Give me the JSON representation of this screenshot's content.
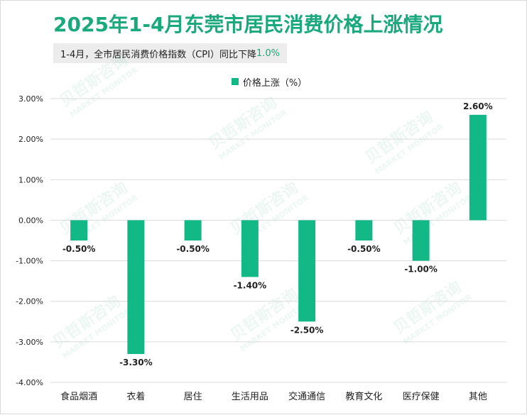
{
  "title": "2025年1-4月东莞市居民消费价格上涨情况",
  "subtitle": {
    "text": "1-4月，全市居民消费价格指数（CPI）同比下降",
    "highlight": "1.0%"
  },
  "watermark": {
    "cn": "贝哲斯咨询",
    "en": "MARKET MONITOR"
  },
  "colors": {
    "bar": "#12b886",
    "title": "#1aa97c",
    "grid": "#d9d9d9",
    "axis_text": "#222222"
  },
  "chart_data": {
    "type": "bar",
    "categories": [
      "食品烟酒",
      "衣着",
      "居住",
      "生活用品",
      "交通通信",
      "教育文化",
      "医疗保健",
      "其他"
    ],
    "series": [
      {
        "name": "价格上涨（%）",
        "values": [
          -0.5,
          -3.3,
          -0.5,
          -1.4,
          -2.5,
          -0.5,
          -1.0,
          2.6
        ]
      }
    ],
    "data_labels": [
      "-0.50%",
      "-3.30%",
      "-0.50%",
      "-1.40%",
      "-2.50%",
      "-0.50%",
      "-1.00%",
      "2.60%"
    ],
    "yticks": [
      "3.00%",
      "2.00%",
      "1.00%",
      "0.00%",
      "-1.00%",
      "-2.00%",
      "-3.00%",
      "-4.00%"
    ],
    "ylim": [
      -4,
      3
    ],
    "grid": true,
    "legend_position": "top-center"
  }
}
